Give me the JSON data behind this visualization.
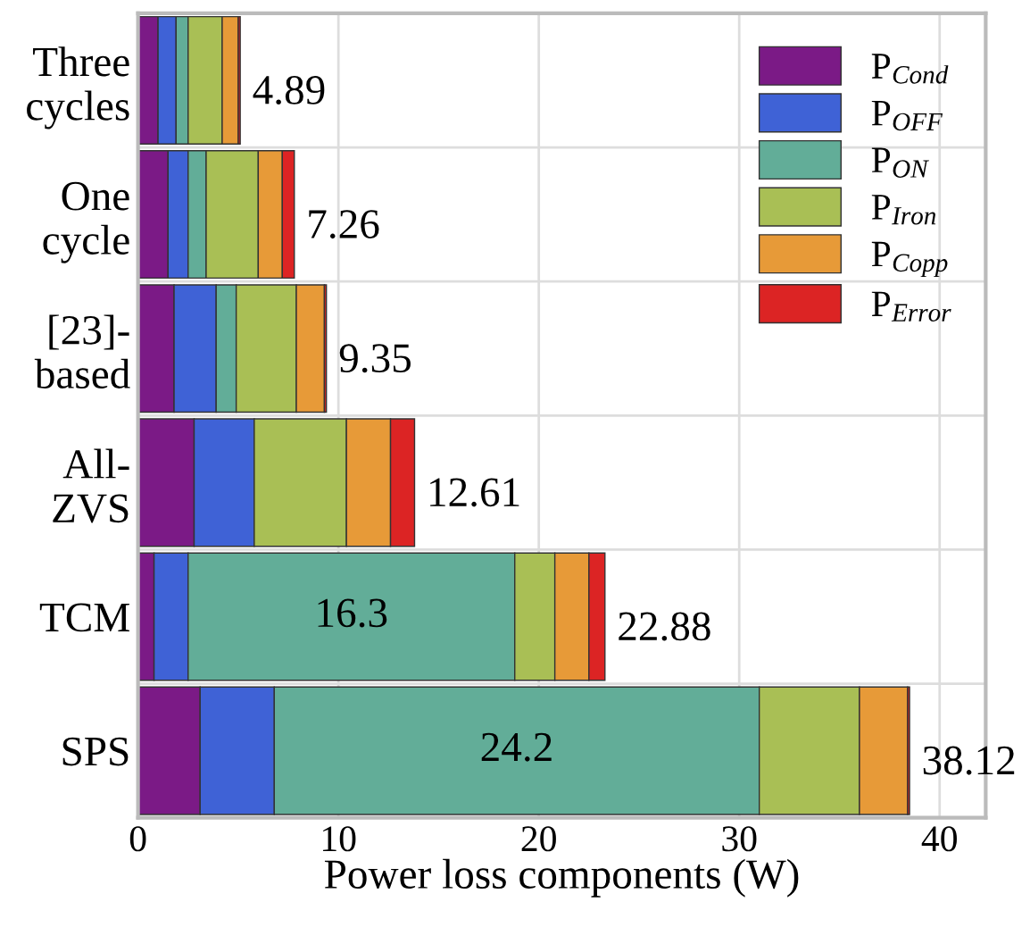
{
  "chart_data": {
    "type": "bar",
    "orientation": "horizontal",
    "stacked": true,
    "categories": [
      "Three\ncycles",
      "One\ncycle",
      "[23]-\nbased",
      "All-\nZVS",
      "TCM",
      "SPS"
    ],
    "series": [
      {
        "name": "P$_{Cond}$",
        "color": "#7b1a86",
        "values": [
          1.0,
          1.5,
          1.8,
          2.8,
          0.8,
          3.1
        ]
      },
      {
        "name": "P$_{OFF}$",
        "color": "#3f62d6",
        "values": [
          0.9,
          1.0,
          2.1,
          3.0,
          1.7,
          3.7
        ]
      },
      {
        "name": "P$_{ON}$",
        "color": "#62ad98",
        "values": [
          0.6,
          0.9,
          1.0,
          0,
          16.3,
          24.2
        ],
        "value_labels": [
          null,
          null,
          null,
          null,
          "16.3",
          "24.2"
        ]
      },
      {
        "name": "P$_{Iron}$",
        "color": "#a9bf55",
        "values": [
          1.7,
          2.6,
          3.0,
          4.6,
          2.0,
          5.0
        ]
      },
      {
        "name": "P$_{Copp}$",
        "color": "#e79a38",
        "values": [
          0.8,
          1.2,
          1.4,
          2.2,
          1.7,
          2.4
        ]
      },
      {
        "name": "P$_{Error}$",
        "color": "#dc2424",
        "values": [
          0.1,
          0.6,
          0.1,
          1.2,
          0.8,
          0.1
        ]
      }
    ],
    "annotations": [
      "4.89",
      "7.26",
      "9.35",
      "12.61",
      "22.88",
      "38.12"
    ],
    "xlabel": "Power loss components (W)",
    "xlim": [
      0,
      42.3
    ],
    "xticks": [
      0,
      10,
      20,
      30,
      40
    ],
    "grid": true,
    "legend": "top right"
  }
}
